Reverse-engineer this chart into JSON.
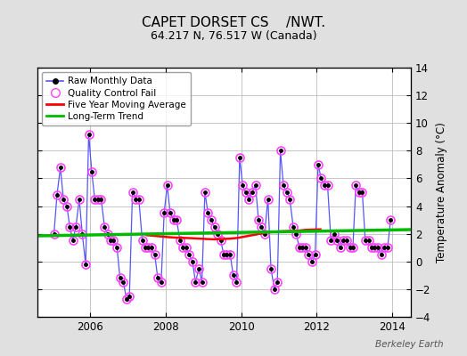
{
  "title": "CAPET DORSET CS    /NWT.",
  "subtitle": "64.217 N, 76.517 W (Canada)",
  "ylabel": "Temperature Anomaly (°C)",
  "watermark": "Berkeley Earth",
  "ylim": [
    -4,
    14
  ],
  "yticks": [
    -4,
    -2,
    0,
    2,
    4,
    6,
    8,
    10,
    12,
    14
  ],
  "xlim": [
    2004.6,
    2014.5
  ],
  "xticks": [
    2006,
    2008,
    2010,
    2012,
    2014
  ],
  "bg_color": "#e0e0e0",
  "plot_bg_color": "#ffffff",
  "grid_color": "#b0b0b0",
  "raw_color": "#5555ff",
  "raw_marker_color": "#000000",
  "qc_color": "#ff44ff",
  "ma_color": "#ff0000",
  "trend_color": "#00bb00",
  "raw_data_x": [
    2005.04,
    2005.12,
    2005.21,
    2005.29,
    2005.38,
    2005.46,
    2005.54,
    2005.62,
    2005.71,
    2005.79,
    2005.88,
    2005.96,
    2006.04,
    2006.12,
    2006.21,
    2006.29,
    2006.38,
    2006.46,
    2006.54,
    2006.62,
    2006.71,
    2006.79,
    2006.88,
    2006.96,
    2007.04,
    2007.12,
    2007.21,
    2007.29,
    2007.38,
    2007.46,
    2007.54,
    2007.62,
    2007.71,
    2007.79,
    2007.88,
    2007.96,
    2008.04,
    2008.12,
    2008.21,
    2008.29,
    2008.38,
    2008.46,
    2008.54,
    2008.62,
    2008.71,
    2008.79,
    2008.88,
    2008.96,
    2009.04,
    2009.12,
    2009.21,
    2009.29,
    2009.38,
    2009.46,
    2009.54,
    2009.62,
    2009.71,
    2009.79,
    2009.88,
    2009.96,
    2010.04,
    2010.12,
    2010.21,
    2010.29,
    2010.38,
    2010.46,
    2010.54,
    2010.62,
    2010.71,
    2010.79,
    2010.88,
    2010.96,
    2011.04,
    2011.12,
    2011.21,
    2011.29,
    2011.38,
    2011.46,
    2011.54,
    2011.62,
    2011.71,
    2011.79,
    2011.88,
    2011.96,
    2012.04,
    2012.12,
    2012.21,
    2012.29,
    2012.38,
    2012.46,
    2012.54,
    2012.62,
    2012.71,
    2012.79,
    2012.88,
    2012.96,
    2013.04,
    2013.12,
    2013.21,
    2013.29,
    2013.38,
    2013.46,
    2013.54,
    2013.62,
    2013.71,
    2013.79,
    2013.88,
    2013.96
  ],
  "raw_data_y": [
    2.0,
    4.8,
    6.8,
    4.5,
    4.0,
    2.5,
    1.5,
    2.5,
    4.5,
    2.0,
    -0.2,
    9.2,
    6.5,
    4.5,
    4.5,
    4.5,
    2.5,
    2.0,
    1.5,
    1.5,
    1.0,
    -1.2,
    -1.5,
    -2.7,
    -2.5,
    5.0,
    4.5,
    4.5,
    1.5,
    1.0,
    1.0,
    1.0,
    0.5,
    -1.2,
    -1.5,
    3.5,
    5.5,
    3.5,
    3.0,
    3.0,
    1.5,
    1.0,
    1.0,
    0.5,
    0.0,
    -1.5,
    -0.5,
    -1.5,
    5.0,
    3.5,
    3.0,
    2.5,
    2.0,
    1.5,
    0.5,
    0.5,
    0.5,
    -1.0,
    -1.5,
    7.5,
    5.5,
    5.0,
    4.5,
    5.0,
    5.5,
    3.0,
    2.5,
    2.0,
    4.5,
    -0.5,
    -2.0,
    -1.5,
    8.0,
    5.5,
    5.0,
    4.5,
    2.5,
    2.0,
    1.0,
    1.0,
    1.0,
    0.5,
    0.0,
    0.5,
    7.0,
    6.0,
    5.5,
    5.5,
    1.5,
    2.0,
    1.5,
    1.0,
    1.5,
    1.5,
    1.0,
    1.0,
    5.5,
    5.0,
    5.0,
    1.5,
    1.5,
    1.0,
    1.0,
    1.0,
    0.5,
    1.0,
    1.0,
    3.0
  ],
  "qc_indices": [
    0,
    1,
    2,
    3,
    4,
    5,
    6,
    7,
    8,
    9,
    10,
    11,
    12,
    13,
    14,
    15,
    16,
    17,
    18,
    19,
    20,
    21,
    22,
    23,
    24,
    25,
    26,
    27,
    28,
    29,
    30,
    31,
    32,
    33,
    34,
    35,
    36,
    37,
    38,
    39,
    40,
    41,
    42,
    43,
    44,
    45,
    46,
    47,
    48,
    49,
    50,
    51,
    52,
    53,
    54,
    55,
    56,
    57,
    58,
    59,
    60,
    61,
    62,
    63,
    64,
    65,
    66,
    67,
    68,
    69,
    70,
    71,
    72,
    73,
    74,
    75,
    76,
    77,
    78,
    79,
    80,
    81,
    82,
    83,
    84,
    85,
    86,
    87,
    88,
    89,
    90,
    91,
    92,
    93,
    94,
    95,
    96,
    97,
    98,
    99,
    100,
    101,
    102,
    103,
    104,
    105,
    106,
    107
  ],
  "moving_avg_x": [
    2007.5,
    2007.7,
    2007.9,
    2008.1,
    2008.3,
    2008.5,
    2008.7,
    2008.9,
    2009.1,
    2009.3,
    2009.5,
    2009.7,
    2009.9,
    2010.1,
    2010.3,
    2010.5,
    2010.7,
    2010.9,
    2011.1,
    2011.3,
    2011.5,
    2011.7,
    2011.9,
    2012.1
  ],
  "moving_avg_y": [
    1.9,
    1.85,
    1.8,
    1.75,
    1.72,
    1.7,
    1.68,
    1.65,
    1.62,
    1.6,
    1.62,
    1.65,
    1.7,
    1.8,
    1.9,
    2.0,
    2.1,
    2.15,
    2.18,
    2.2,
    2.22,
    2.28,
    2.3,
    2.32
  ],
  "trend_x": [
    2004.6,
    2014.5
  ],
  "trend_y": [
    1.85,
    2.3
  ]
}
